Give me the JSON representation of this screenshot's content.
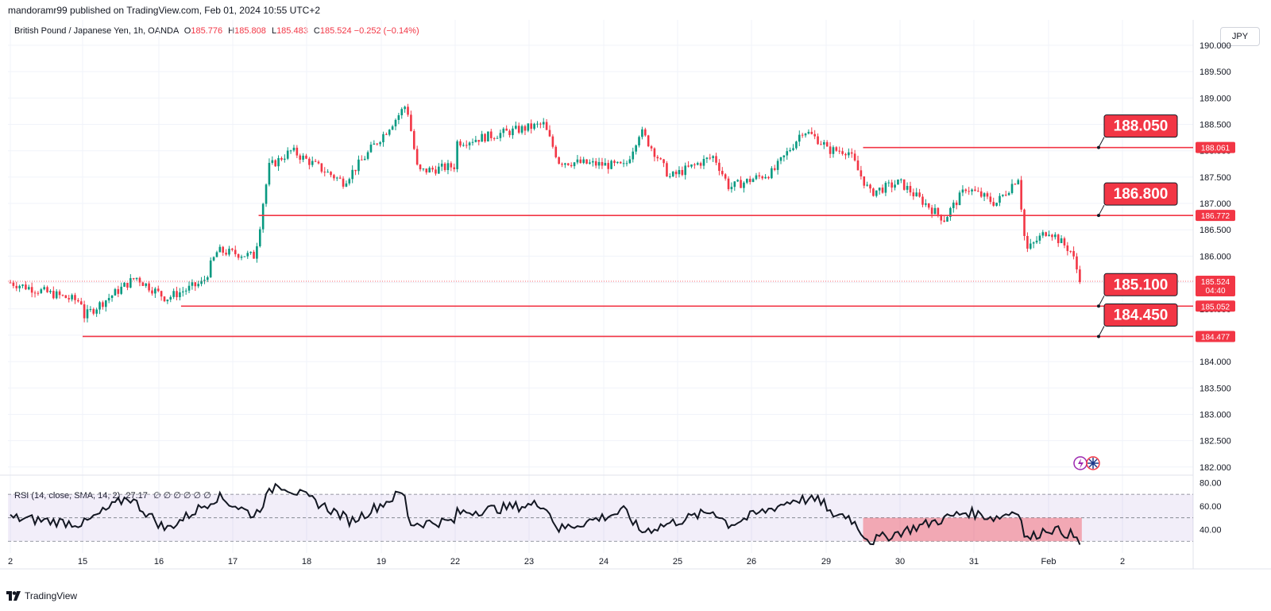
{
  "header": {
    "published": "mandoramr99 published on TradingView.com, Feb 01, 2024 10:55 UTC+2"
  },
  "legend": {
    "symbol": "British Pound / Japanese Yen, 1h, OANDA",
    "open_label": "O",
    "open": "185.776",
    "high_label": "H",
    "high": "185.808",
    "low_label": "L",
    "low": "185.483",
    "close_label": "C",
    "close": "185.524",
    "change": "−0.252 (−0.14%)"
  },
  "currency_button": "JPY",
  "price_axis": {
    "ticks": [
      "190.000",
      "189.500",
      "189.000",
      "188.500",
      "188.000",
      "187.500",
      "187.000",
      "186.500",
      "186.000",
      "185.500",
      "185.000",
      "184.500",
      "184.000",
      "183.500",
      "183.000",
      "182.500",
      "182.000"
    ],
    "current_price": "185.524",
    "countdown": "04:40"
  },
  "time_axis": {
    "labels": [
      "2",
      "15",
      "16",
      "17",
      "18",
      "19",
      "22",
      "23",
      "24",
      "25",
      "26",
      "29",
      "30",
      "31",
      "Feb",
      "2"
    ]
  },
  "rsi": {
    "legend": "RSI (14, close, SMA, 14, 2)",
    "value": "27.17",
    "extra": "∅ ∅ ∅ ∅ ∅ ∅",
    "ticks": [
      "80.00",
      "60.00",
      "40.00"
    ]
  },
  "annotations": [
    {
      "label": "188.050",
      "price": 188.061,
      "axis_label": "188.061",
      "start_day": 29.5
    },
    {
      "label": "186.800",
      "price": 186.772,
      "axis_label": "186.772",
      "start_day": 17.35
    },
    {
      "label": "185.100",
      "price": 185.052,
      "axis_label": "185.052",
      "start_day": 16.3
    },
    {
      "label": "184.450",
      "price": 184.477,
      "axis_label": "184.477",
      "start_day": 14.7
    }
  ],
  "footer": {
    "brand": "TradingView"
  },
  "colors": {
    "up": "#089981",
    "down": "#f23645",
    "annotation": "#f23645",
    "rsi_band": "#7e57c2",
    "rsi_highlight": "#f23645"
  },
  "chart_data": {
    "type": "candlestick",
    "symbol": "GBP/JPY",
    "interval": "1h",
    "ylim": [
      181.7,
      190.2
    ],
    "key_closes": [
      {
        "day": 12.0,
        "price": 185.5
      },
      {
        "day": 14.7,
        "price": 184.5
      },
      {
        "day": 15.7,
        "price": 185.6
      },
      {
        "day": 16.1,
        "price": 185.2
      },
      {
        "day": 16.6,
        "price": 185.5
      },
      {
        "day": 16.8,
        "price": 186.1
      },
      {
        "day": 17.3,
        "price": 186.0
      },
      {
        "day": 17.5,
        "price": 187.7
      },
      {
        "day": 17.8,
        "price": 188.0
      },
      {
        "day": 18.5,
        "price": 187.4
      },
      {
        "day": 19.2,
        "price": 188.6
      },
      {
        "day": 19.35,
        "price": 188.9
      },
      {
        "day": 19.5,
        "price": 187.6
      },
      {
        "day": 22.2,
        "price": 188.2
      },
      {
        "day": 23.2,
        "price": 188.5
      },
      {
        "day": 23.4,
        "price": 187.8
      },
      {
        "day": 24.3,
        "price": 187.7
      },
      {
        "day": 24.5,
        "price": 188.4
      },
      {
        "day": 24.9,
        "price": 187.5
      },
      {
        "day": 25.5,
        "price": 187.9
      },
      {
        "day": 25.7,
        "price": 187.3
      },
      {
        "day": 26.3,
        "price": 187.6
      },
      {
        "day": 26.7,
        "price": 188.4
      },
      {
        "day": 27.0,
        "price": 188.1
      },
      {
        "day": 29.3,
        "price": 188.0
      },
      {
        "day": 29.6,
        "price": 187.2
      },
      {
        "day": 30.0,
        "price": 187.4
      },
      {
        "day": 30.6,
        "price": 186.7
      },
      {
        "day": 30.9,
        "price": 187.3
      },
      {
        "day": 31.3,
        "price": 187.0
      },
      {
        "day": 31.6,
        "price": 187.5
      },
      {
        "day": 31.7,
        "price": 186.1
      },
      {
        "day": 32.0,
        "price": 186.5
      },
      {
        "day": 32.3,
        "price": 186.1
      },
      {
        "day": 32.45,
        "price": 185.52
      }
    ],
    "rsi_points": [
      {
        "day": 12.0,
        "value": 50
      },
      {
        "day": 14.8,
        "value": 36
      },
      {
        "day": 15.6,
        "value": 68
      },
      {
        "day": 16.1,
        "value": 40
      },
      {
        "day": 16.8,
        "value": 68
      },
      {
        "day": 17.3,
        "value": 52
      },
      {
        "day": 17.6,
        "value": 80
      },
      {
        "day": 18.3,
        "value": 58
      },
      {
        "day": 18.6,
        "value": 47
      },
      {
        "day": 19.3,
        "value": 72
      },
      {
        "day": 19.4,
        "value": 45
      },
      {
        "day": 22.0,
        "value": 54
      },
      {
        "day": 23.2,
        "value": 62
      },
      {
        "day": 23.4,
        "value": 40
      },
      {
        "day": 24.3,
        "value": 56
      },
      {
        "day": 24.5,
        "value": 38
      },
      {
        "day": 25.5,
        "value": 56
      },
      {
        "day": 25.7,
        "value": 44
      },
      {
        "day": 26.6,
        "value": 66
      },
      {
        "day": 29.3,
        "value": 52
      },
      {
        "day": 29.6,
        "value": 30
      },
      {
        "day": 30.9,
        "value": 55
      },
      {
        "day": 31.3,
        "value": 50
      },
      {
        "day": 31.6,
        "value": 57
      },
      {
        "day": 31.7,
        "value": 31
      },
      {
        "day": 32.0,
        "value": 41
      },
      {
        "day": 32.3,
        "value": 36
      },
      {
        "day": 32.45,
        "value": 27.17
      }
    ],
    "rsi_range": [
      20,
      85
    ],
    "rsi_bands": [
      30,
      50,
      70
    ],
    "rsi_highlight_days": [
      29.5,
      32.45
    ]
  }
}
